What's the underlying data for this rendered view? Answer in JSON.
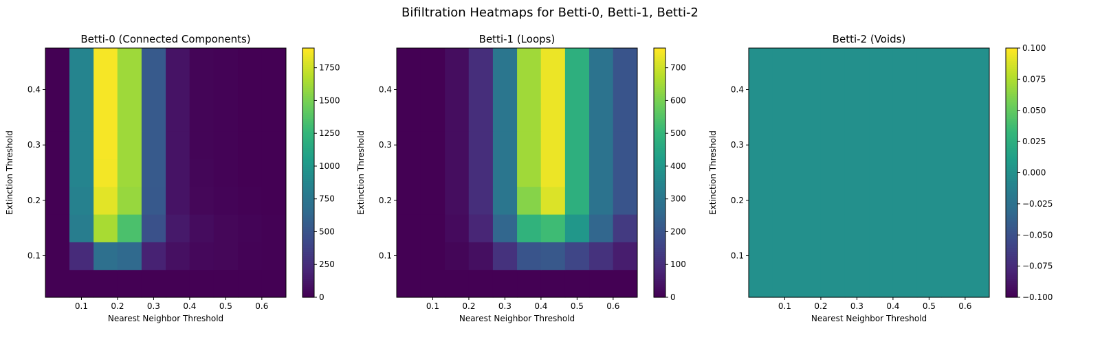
{
  "figure": {
    "suptitle": "Bifiltration Heatmaps for Betti-0, Betti-1, Betti-2",
    "colormap": [
      "#440154",
      "#482878",
      "#3e4989",
      "#31688e",
      "#26828e",
      "#1f9e89",
      "#35b779",
      "#6ece58",
      "#b5de2b",
      "#fde725"
    ]
  },
  "chart_data": [
    {
      "type": "heatmap",
      "title": "Betti-0 (Connected Components)",
      "xlabel": "Nearest Neighbor Threshold",
      "ylabel": "Extinction Threshold",
      "x": [
        0.033,
        0.1,
        0.167,
        0.233,
        0.3,
        0.367,
        0.433,
        0.5,
        0.567,
        0.633
      ],
      "y": [
        0.05,
        0.1,
        0.15,
        0.2,
        0.25,
        0.3,
        0.35,
        0.4,
        0.45
      ],
      "xlim": [
        0.0,
        0.667
      ],
      "ylim": [
        0.025,
        0.475
      ],
      "xticks": [
        "0.1",
        "0.2",
        "0.3",
        "0.4",
        "0.5",
        "0.6"
      ],
      "yticks": [
        "0.1",
        "0.2",
        "0.3",
        "0.4"
      ],
      "colorbar": {
        "range": [
          0,
          1900
        ],
        "ticks": [
          "0",
          "250",
          "500",
          "750",
          "1000",
          "1250",
          "1500",
          "1750"
        ]
      },
      "z": [
        [
          0,
          0,
          0,
          0,
          0,
          0,
          0,
          0,
          0,
          0
        ],
        [
          0,
          230,
          700,
          650,
          180,
          80,
          40,
          30,
          10,
          5
        ],
        [
          0,
          800,
          1650,
          1350,
          480,
          130,
          60,
          30,
          15,
          5
        ],
        [
          0,
          840,
          1820,
          1600,
          530,
          100,
          30,
          15,
          5,
          0
        ],
        [
          0,
          860,
          1870,
          1620,
          540,
          100,
          25,
          10,
          0,
          0
        ],
        [
          0,
          860,
          1880,
          1620,
          540,
          100,
          20,
          10,
          0,
          0
        ],
        [
          0,
          860,
          1880,
          1620,
          540,
          100,
          20,
          10,
          0,
          0
        ],
        [
          0,
          860,
          1880,
          1620,
          540,
          100,
          20,
          10,
          0,
          0
        ],
        [
          0,
          860,
          1880,
          1620,
          540,
          100,
          20,
          10,
          0,
          0
        ]
      ]
    },
    {
      "type": "heatmap",
      "title": "Betti-1 (Loops)",
      "xlabel": "Nearest Neighbor Threshold",
      "ylabel": "Extinction Threshold",
      "x": [
        0.033,
        0.1,
        0.167,
        0.233,
        0.3,
        0.367,
        0.433,
        0.5,
        0.567,
        0.633
      ],
      "y": [
        0.05,
        0.1,
        0.15,
        0.2,
        0.25,
        0.3,
        0.35,
        0.4,
        0.45
      ],
      "xlim": [
        0.0,
        0.667
      ],
      "ylim": [
        0.025,
        0.475
      ],
      "xticks": [
        "0.1",
        "0.2",
        "0.3",
        "0.4",
        "0.5",
        "0.6"
      ],
      "yticks": [
        "0.1",
        "0.2",
        "0.3",
        "0.4"
      ],
      "colorbar": {
        "range": [
          0,
          760
        ],
        "ticks": [
          "0",
          "100",
          "200",
          "300",
          "400",
          "500",
          "600",
          "700"
        ]
      },
      "z": [
        [
          0,
          0,
          0,
          0,
          0,
          0,
          0,
          0,
          0,
          0
        ],
        [
          0,
          0,
          10,
          30,
          110,
          200,
          210,
          160,
          110,
          60
        ],
        [
          0,
          0,
          20,
          80,
          250,
          490,
          520,
          400,
          250,
          130
        ],
        [
          0,
          0,
          25,
          100,
          300,
          620,
          720,
          480,
          290,
          200
        ],
        [
          0,
          0,
          25,
          100,
          300,
          650,
          740,
          480,
          290,
          200
        ],
        [
          0,
          0,
          25,
          100,
          300,
          650,
          740,
          480,
          290,
          200
        ],
        [
          0,
          0,
          25,
          100,
          300,
          650,
          740,
          480,
          290,
          200
        ],
        [
          0,
          0,
          25,
          100,
          300,
          650,
          740,
          480,
          290,
          200
        ],
        [
          0,
          0,
          25,
          100,
          300,
          650,
          740,
          480,
          290,
          200
        ]
      ]
    },
    {
      "type": "heatmap",
      "title": "Betti-2 (Voids)",
      "xlabel": "Nearest Neighbor Threshold",
      "ylabel": "Extinction Threshold",
      "x": [
        0.033,
        0.1,
        0.167,
        0.233,
        0.3,
        0.367,
        0.433,
        0.5,
        0.567,
        0.633
      ],
      "y": [
        0.05,
        0.1,
        0.15,
        0.2,
        0.25,
        0.3,
        0.35,
        0.4,
        0.45
      ],
      "xlim": [
        0.0,
        0.667
      ],
      "ylim": [
        0.025,
        0.475
      ],
      "xticks": [
        "0.1",
        "0.2",
        "0.3",
        "0.4",
        "0.5",
        "0.6"
      ],
      "yticks": [
        "0.1",
        "0.2",
        "0.3",
        "0.4"
      ],
      "colorbar": {
        "range": [
          -0.1,
          0.1
        ],
        "ticks": [
          "−0.100",
          "−0.075",
          "−0.050",
          "−0.025",
          "0.000",
          "0.025",
          "0.050",
          "0.075",
          "0.100"
        ]
      },
      "z": [
        [
          0,
          0,
          0,
          0,
          0,
          0,
          0,
          0,
          0,
          0
        ],
        [
          0,
          0,
          0,
          0,
          0,
          0,
          0,
          0,
          0,
          0
        ],
        [
          0,
          0,
          0,
          0,
          0,
          0,
          0,
          0,
          0,
          0
        ],
        [
          0,
          0,
          0,
          0,
          0,
          0,
          0,
          0,
          0,
          0
        ],
        [
          0,
          0,
          0,
          0,
          0,
          0,
          0,
          0,
          0,
          0
        ],
        [
          0,
          0,
          0,
          0,
          0,
          0,
          0,
          0,
          0,
          0
        ],
        [
          0,
          0,
          0,
          0,
          0,
          0,
          0,
          0,
          0,
          0
        ],
        [
          0,
          0,
          0,
          0,
          0,
          0,
          0,
          0,
          0,
          0
        ],
        [
          0,
          0,
          0,
          0,
          0,
          0,
          0,
          0,
          0,
          0
        ]
      ]
    }
  ]
}
